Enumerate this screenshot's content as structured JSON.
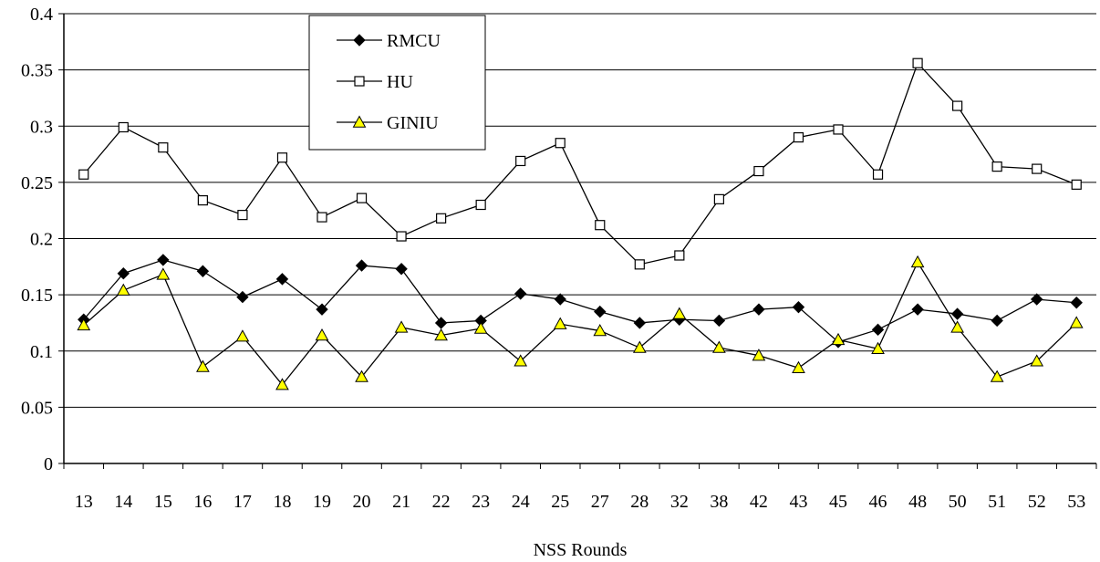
{
  "chart_data": {
    "type": "line",
    "title": "",
    "xlabel": "NSS Rounds",
    "ylabel": "",
    "categories": [
      "13",
      "14",
      "15",
      "16",
      "17",
      "18",
      "19",
      "20",
      "21",
      "22",
      "23",
      "24",
      "25",
      "27",
      "28",
      "32",
      "38",
      "42",
      "43",
      "45",
      "46",
      "48",
      "50",
      "51",
      "52",
      "53"
    ],
    "ylim": [
      0,
      0.4
    ],
    "yticks": [
      "0",
      "0.05",
      "0.1",
      "0.15",
      "0.2",
      "0.25",
      "0.3",
      "0.35",
      "0.4"
    ],
    "grid": "horizontal",
    "legend_position": "top-left-inside",
    "series": [
      {
        "name": "RMCU",
        "marker": "diamond",
        "values": [
          0.128,
          0.169,
          0.181,
          0.171,
          0.148,
          0.164,
          0.137,
          0.176,
          0.173,
          0.125,
          0.127,
          0.151,
          0.146,
          0.135,
          0.125,
          0.128,
          0.127,
          0.137,
          0.139,
          0.108,
          0.119,
          0.137,
          0.133,
          0.127,
          0.146,
          0.143
        ]
      },
      {
        "name": "HU",
        "marker": "square",
        "values": [
          0.257,
          0.299,
          0.281,
          0.234,
          0.221,
          0.272,
          0.219,
          0.236,
          0.202,
          0.218,
          0.23,
          0.269,
          0.285,
          0.212,
          0.177,
          0.185,
          0.235,
          0.26,
          0.29,
          0.297,
          0.257,
          0.356,
          0.318,
          0.264,
          0.262,
          0.248
        ]
      },
      {
        "name": "GINIU",
        "marker": "triangle",
        "values": [
          0.123,
          0.154,
          0.168,
          0.086,
          0.113,
          0.07,
          0.114,
          0.077,
          0.121,
          0.114,
          0.12,
          0.091,
          0.124,
          0.118,
          0.103,
          0.133,
          0.103,
          0.096,
          0.085,
          0.11,
          0.102,
          0.179,
          0.121,
          0.077,
          0.091,
          0.125
        ]
      }
    ],
    "colors": {
      "line": "#000000",
      "triangle_fill": "#ffff00",
      "grid": "#000000"
    }
  }
}
